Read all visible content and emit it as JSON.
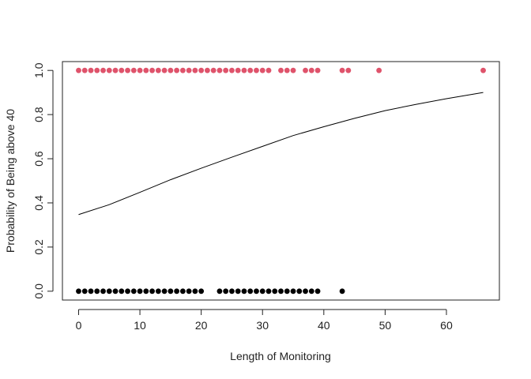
{
  "chart_data": {
    "type": "scatter",
    "title": "",
    "xlabel": "Length of Monitoring",
    "ylabel": "Probability of Being above 40",
    "xlim": [
      -2.64,
      68.64
    ],
    "ylim": [
      -0.04,
      1.04
    ],
    "x_ticks": [
      0,
      10,
      20,
      30,
      40,
      50,
      60
    ],
    "y_ticks": [
      0.0,
      0.2,
      0.4,
      0.6,
      0.8,
      1.0
    ],
    "x_tick_labels": [
      "0",
      "10",
      "20",
      "30",
      "40",
      "50",
      "60"
    ],
    "y_tick_labels": [
      "0.0",
      "0.2",
      "0.4",
      "0.6",
      "0.8",
      "1.0"
    ],
    "grid": false,
    "legend": "none",
    "series": [
      {
        "type": "scatter",
        "color": "#DF536B",
        "y": 1,
        "x": [
          0,
          1,
          2,
          3,
          4,
          5,
          6,
          7,
          8,
          9,
          10,
          11,
          12,
          13,
          14,
          15,
          16,
          17,
          18,
          19,
          20,
          21,
          22,
          23,
          24,
          25,
          26,
          27,
          28,
          29,
          30,
          31,
          33,
          34,
          35,
          37,
          38,
          39,
          43,
          44,
          49,
          66
        ]
      },
      {
        "type": "scatter",
        "color": "#000000",
        "y": 0,
        "x": [
          0,
          1,
          2,
          3,
          4,
          5,
          6,
          7,
          8,
          9,
          10,
          11,
          12,
          13,
          14,
          15,
          16,
          17,
          18,
          19,
          20,
          23,
          24,
          25,
          26,
          27,
          28,
          29,
          30,
          31,
          32,
          33,
          34,
          35,
          36,
          37,
          38,
          39,
          43
        ]
      },
      {
        "type": "line",
        "color": "#000000",
        "points": [
          [
            0,
            0.347
          ],
          [
            5,
            0.392
          ],
          [
            10,
            0.448
          ],
          [
            15,
            0.505
          ],
          [
            20,
            0.557
          ],
          [
            25,
            0.607
          ],
          [
            30,
            0.656
          ],
          [
            35,
            0.705
          ],
          [
            40,
            0.745
          ],
          [
            45,
            0.783
          ],
          [
            50,
            0.818
          ],
          [
            55,
            0.846
          ],
          [
            60,
            0.872
          ],
          [
            66,
            0.9
          ]
        ]
      }
    ]
  }
}
